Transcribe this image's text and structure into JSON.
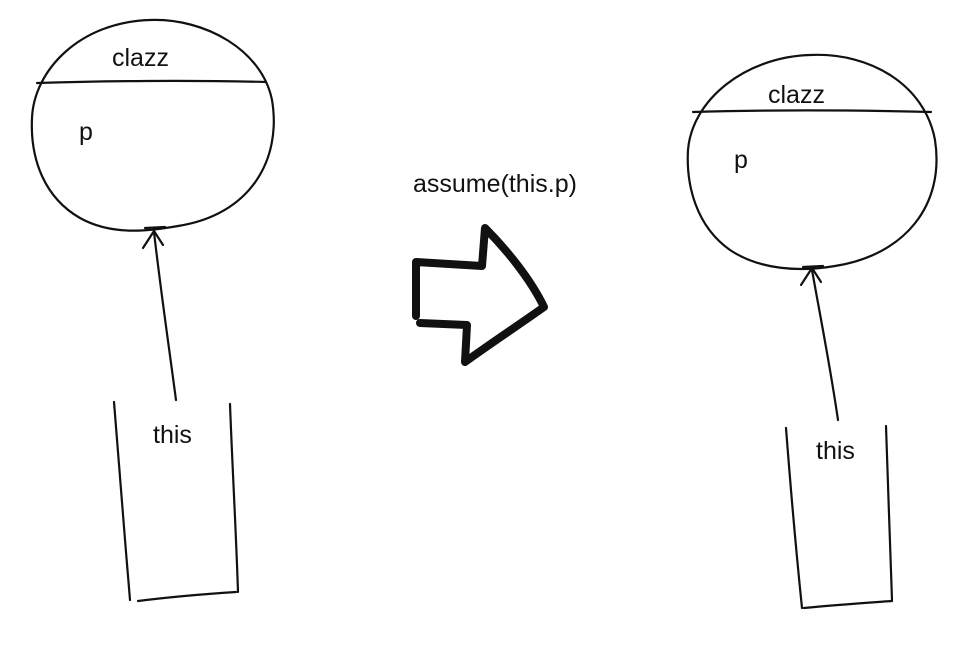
{
  "diagram": {
    "before": {
      "object": {
        "header_label": "clazz",
        "field_label": "p"
      },
      "reference_label": "this"
    },
    "transition": {
      "operation_label": "assume(this.p)"
    },
    "after": {
      "object": {
        "header_label": "clazz",
        "field_label": "p"
      },
      "reference_label": "this"
    }
  }
}
